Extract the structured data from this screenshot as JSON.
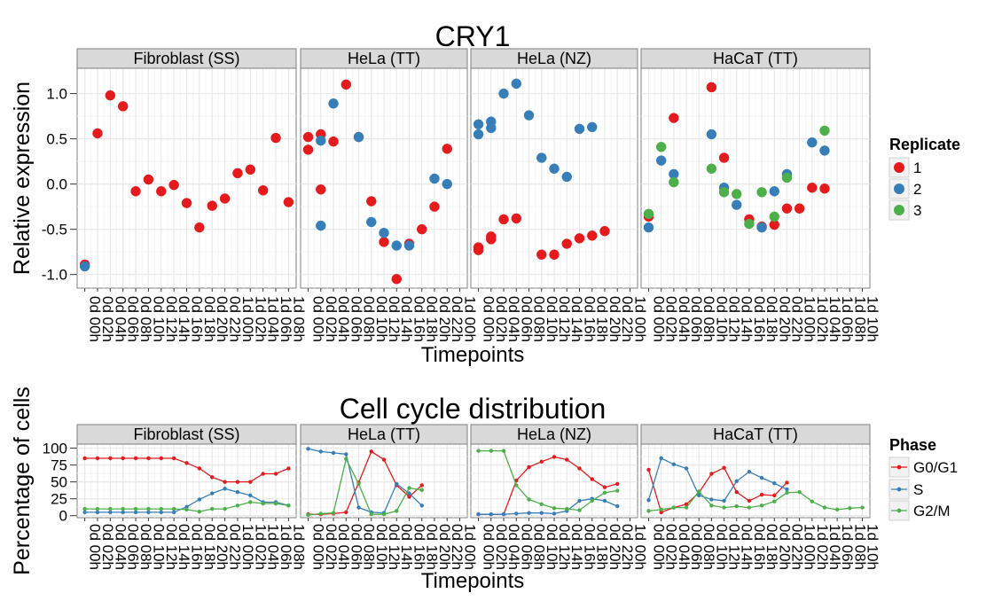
{
  "colors": {
    "red": "#e41a1c",
    "blue": "#377eb8",
    "green": "#4daf4a",
    "strip_bg": "#d9d9d9",
    "strip_border": "#7f7f7f",
    "grid_major": "#e8e8e8",
    "grid_minor": "#f4f4f4"
  },
  "chart_data": [
    {
      "type": "scatter",
      "title": "CRY1",
      "xlabel": "Timepoints",
      "ylabel": "Relative expression",
      "ylim": [
        -1.15,
        1.28
      ],
      "yticks": [
        -1.0,
        -0.5,
        0.0,
        0.5,
        1.0
      ],
      "ytick_labels": [
        "-1.0",
        "-0.5",
        "0.0",
        "0.5",
        "1.0"
      ],
      "grid": true,
      "legend": {
        "title": "Replicate",
        "position": "right",
        "entries": [
          "1",
          "2",
          "3"
        ]
      },
      "panels": [
        {
          "label": "Fibroblast (SS)",
          "x": [
            "0d 00h",
            "0d 02h",
            "0d 04h",
            "0d 06h",
            "0d 08h",
            "0d 10h",
            "0d 12h",
            "0d 14h",
            "0d 16h",
            "0d 18h",
            "0d 20h",
            "0d 22h",
            "1d 00h",
            "1d 02h",
            "1d 04h",
            "1d 06h",
            "1d 08h"
          ],
          "series": [
            {
              "name": "1",
              "values": [
                -0.89,
                0.56,
                0.98,
                0.86,
                -0.08,
                0.05,
                -0.08,
                -0.01,
                -0.21,
                -0.48,
                -0.24,
                -0.16,
                0.12,
                0.16,
                -0.07,
                0.51,
                -0.2
              ]
            },
            {
              "name": "2",
              "values": [
                -0.91,
                null,
                null,
                null,
                null,
                null,
                null,
                null,
                null,
                null,
                null,
                null,
                null,
                null,
                null,
                null,
                null
              ]
            }
          ]
        },
        {
          "label": "HeLa (TT)",
          "x": [
            "0d 00h",
            "0d 02h",
            "0d 04h",
            "0d 06h",
            "0d 08h",
            "0d 10h",
            "0d 12h",
            "0d 14h",
            "0d 16h",
            "0d 18h",
            "0d 20h",
            "0d 22h",
            "1d 00h"
          ],
          "series": [
            {
              "name": "1",
              "values": [
                [
                  0.52,
                  0.38
                ],
                [
                  -0.06,
                  0.55
                ],
                [
                  0.47,
                  null
                ],
                [
                  1.1,
                  null
                ],
                [
                  0.52,
                  null
                ],
                [
                  -0.19,
                  null
                ],
                [
                  -0.64,
                  null
                ],
                [
                  -1.05,
                  null
                ],
                [
                  -0.66,
                  null
                ],
                [
                  -0.5,
                  null
                ],
                [
                  -0.25,
                  null
                ],
                [
                  0.39,
                  null
                ],
                [
                  null,
                  null
                ]
              ]
            },
            {
              "name": "2",
              "values": [
                [
                  null,
                  null
                ],
                [
                  -0.46,
                  0.48
                ],
                [
                  0.89,
                  null
                ],
                [
                  null,
                  null
                ],
                [
                  0.52,
                  null
                ],
                [
                  -0.42,
                  null
                ],
                [
                  -0.54,
                  null
                ],
                [
                  -0.68,
                  null
                ],
                [
                  -0.68,
                  null
                ],
                [
                  null,
                  null
                ],
                [
                  0.06,
                  null
                ],
                [
                  0.0,
                  null
                ],
                [
                  null,
                  null
                ]
              ]
            }
          ]
        },
        {
          "label": "HeLa (NZ)",
          "x": [
            "0d 00h",
            "0d 02h",
            "0d 04h",
            "0d 06h",
            "0d 08h",
            "0d 10h",
            "0d 12h",
            "0d 14h",
            "0d 16h",
            "0d 18h",
            "0d 20h",
            "0d 22h",
            "1d 00h"
          ],
          "series": [
            {
              "name": "1",
              "values": [
                [
                  -0.7,
                  -0.73
                ],
                [
                  -0.58,
                  -0.61
                ],
                [
                  -0.39,
                  null
                ],
                [
                  -0.38,
                  null
                ],
                [
                  null,
                  null
                ],
                [
                  -0.78,
                  null
                ],
                [
                  -0.78,
                  null
                ],
                [
                  -0.66,
                  null
                ],
                [
                  -0.6,
                  null
                ],
                [
                  -0.57,
                  null
                ],
                [
                  -0.52,
                  null
                ],
                [
                  null,
                  null
                ],
                [
                  null,
                  null
                ]
              ]
            },
            {
              "name": "2",
              "values": [
                [
                  0.55,
                  0.66
                ],
                [
                  0.69,
                  0.62
                ],
                [
                  1.0,
                  null
                ],
                [
                  1.11,
                  null
                ],
                [
                  0.76,
                  null
                ],
                [
                  0.29,
                  null
                ],
                [
                  0.17,
                  null
                ],
                [
                  0.08,
                  null
                ],
                [
                  0.61,
                  null
                ],
                [
                  0.63,
                  null
                ],
                [
                  null,
                  null
                ],
                [
                  null,
                  null
                ],
                [
                  null,
                  null
                ]
              ]
            }
          ]
        },
        {
          "label": "HaCaT (TT)",
          "x": [
            "0d 00h",
            "0d 02h",
            "0d 04h",
            "0d 06h",
            "0d 08h",
            "0d 10h",
            "0d 12h",
            "0d 14h",
            "0d 16h",
            "0d 18h",
            "0d 20h",
            "0d 22h",
            "1d 00h",
            "1d 02h",
            "1d 04h",
            "1d 06h",
            "1d 08h",
            "1d 10h"
          ],
          "series": [
            {
              "name": "1",
              "values": [
                -0.36,
                null,
                0.73,
                null,
                null,
                1.07,
                0.29,
                null,
                -0.39,
                -0.47,
                -0.45,
                -0.27,
                -0.27,
                -0.04,
                -0.05,
                null,
                null,
                null
              ]
            },
            {
              "name": "2",
              "values": [
                -0.48,
                0.26,
                0.11,
                null,
                null,
                0.55,
                -0.04,
                -0.23,
                null,
                -0.48,
                -0.08,
                0.11,
                null,
                0.46,
                0.37,
                null,
                null,
                null
              ]
            },
            {
              "name": "3",
              "values": [
                -0.33,
                0.41,
                0.02,
                null,
                null,
                0.17,
                -0.09,
                -0.11,
                -0.44,
                -0.09,
                -0.36,
                0.07,
                null,
                null,
                0.59,
                null,
                null,
                null
              ]
            }
          ]
        }
      ]
    },
    {
      "type": "line",
      "title": "Cell cycle distribution",
      "xlabel": "Timepoints",
      "ylabel": "Percentage of cells",
      "ylim": [
        -3,
        106
      ],
      "yticks": [
        0,
        25,
        50,
        75,
        100
      ],
      "ytick_labels": [
        "0",
        "25",
        "50",
        "75",
        "100"
      ],
      "grid": true,
      "legend": {
        "title": "Phase",
        "position": "right",
        "entries": [
          "G0/G1",
          "S",
          "G2/M"
        ]
      },
      "panels": [
        {
          "label": "Fibroblast (SS)",
          "x": [
            "0d 00h",
            "0d 02h",
            "0d 04h",
            "0d 06h",
            "0d 08h",
            "0d 10h",
            "0d 12h",
            "0d 14h",
            "0d 16h",
            "0d 18h",
            "0d 20h",
            "0d 22h",
            "1d 00h",
            "1d 02h",
            "1d 04h",
            "1d 06h",
            "1d 08h"
          ],
          "series": [
            {
              "name": "G0/G1",
              "values": [
                85,
                85,
                85,
                85,
                85,
                85,
                85,
                85,
                78,
                70,
                57,
                50,
                50,
                50,
                62,
                62,
                70
              ]
            },
            {
              "name": "S",
              "values": [
                5,
                5,
                5,
                5,
                5,
                5,
                5,
                5,
                13,
                24,
                33,
                40,
                35,
                30,
                20,
                20,
                15
              ]
            },
            {
              "name": "G2/M",
              "values": [
                10,
                10,
                10,
                10,
                10,
                10,
                10,
                10,
                9,
                6,
                10,
                10,
                15,
                20,
                18,
                18,
                15
              ]
            }
          ]
        },
        {
          "label": "HeLa (TT)",
          "x": [
            "0d 00h",
            "0d 02h",
            "0d 04h",
            "0d 06h",
            "0d 08h",
            "0d 10h",
            "0d 12h",
            "0d 14h",
            "0d 16h",
            "0d 18h",
            "0d 20h",
            "0d 22h",
            "1d 00h"
          ],
          "series": [
            {
              "name": "G0/G1",
              "values": [
                2,
                2,
                3,
                5,
                49,
                95,
                83,
                45,
                28,
                45
              ]
            },
            {
              "name": "S",
              "values": [
                99,
                95,
                93,
                91,
                12,
                5,
                4,
                47,
                33,
                15
              ]
            },
            {
              "name": "G2/M",
              "values": [
                1,
                3,
                4,
                84,
                47,
                2,
                2,
                7,
                41,
                38
              ]
            }
          ]
        },
        {
          "label": "HeLa (NZ)",
          "x": [
            "0d 00h",
            "0d 02h",
            "0d 04h",
            "0d 06h",
            "0d 08h",
            "0d 10h",
            "0d 12h",
            "0d 14h",
            "0d 16h",
            "0d 18h",
            "0d 20h",
            "0d 22h",
            "1d 00h"
          ],
          "series": [
            {
              "name": "G0/G1",
              "values": [
                2,
                2,
                2,
                52,
                72,
                80,
                87,
                83,
                70,
                54,
                42,
                47
              ]
            },
            {
              "name": "S",
              "values": [
                2,
                2,
                2,
                3,
                4,
                4,
                3,
                7,
                22,
                25,
                22,
                14
              ]
            },
            {
              "name": "G2/M",
              "values": [
                96,
                96,
                96,
                45,
                24,
                17,
                11,
                10,
                8,
                22,
                34,
                37
              ]
            }
          ]
        },
        {
          "label": "HaCaT (TT)",
          "x": [
            "0d 00h",
            "0d 02h",
            "0d 04h",
            "0d 06h",
            "0d 08h",
            "0d 10h",
            "0d 12h",
            "0d 14h",
            "0d 16h",
            "0d 18h",
            "0d 20h",
            "0d 22h",
            "1d 00h",
            "1d 02h",
            "1d 04h",
            "1d 06h",
            "1d 08h",
            "1d 10h"
          ],
          "series": [
            {
              "name": "G0/G1",
              "values": [
                68,
                5,
                12,
                17,
                34,
                62,
                71,
                35,
                22,
                31,
                30,
                49
              ]
            },
            {
              "name": "S",
              "values": [
                23,
                85,
                76,
                70,
                30,
                24,
                22,
                51,
                65,
                56,
                48,
                39
              ]
            },
            {
              "name": "G2/M",
              "values": [
                7,
                9,
                12,
                12,
                36,
                15,
                12,
                14,
                12,
                15,
                21,
                34,
                35,
                21,
                12,
                9,
                11,
                12
              ]
            }
          ]
        }
      ]
    }
  ]
}
